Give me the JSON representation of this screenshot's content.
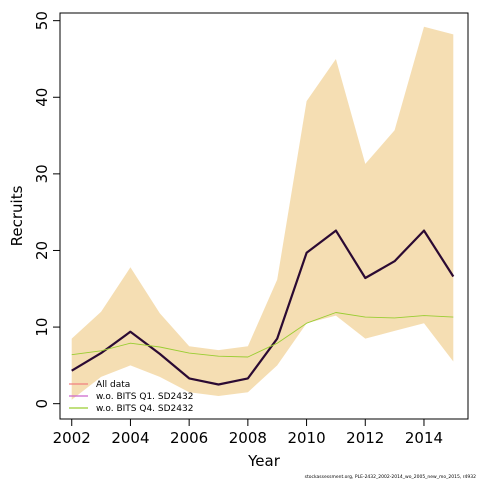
{
  "chart_data": {
    "type": "line",
    "x": [
      2002,
      2003,
      2004,
      2005,
      2006,
      2007,
      2008,
      2009,
      2010,
      2011,
      2012,
      2013,
      2014,
      2015
    ],
    "xlabel": "Year",
    "ylabel": "Recruits",
    "xlim": [
      2001.6,
      2015.5
    ],
    "ylim": [
      -2,
      51
    ],
    "xticks": [
      "2002",
      "2004",
      "2006",
      "2008",
      "2010",
      "2012",
      "2014"
    ],
    "yticks": [
      "0",
      "10",
      "20",
      "30",
      "40",
      "50"
    ],
    "band": {
      "lower": [
        0.5,
        3.5,
        5.0,
        3.5,
        1.5,
        1.0,
        1.5,
        5.0,
        10.5,
        11.5,
        8.5,
        9.5,
        10.5,
        5.5
      ],
      "upper": [
        8.5,
        12.0,
        17.8,
        11.8,
        7.5,
        7.0,
        7.5,
        16.2,
        39.5,
        45.0,
        31.3,
        35.7,
        49.2,
        48.2
      ],
      "color": "#f5deb3"
    },
    "series": [
      {
        "name": "All data",
        "values": [
          4.3,
          6.6,
          9.4,
          6.5,
          3.3,
          2.5,
          3.3,
          8.5,
          19.7,
          22.6,
          16.4,
          18.6,
          22.6,
          16.6
        ],
        "color": "#f08080"
      },
      {
        "name": "w.o. BITS Q1. SD2432",
        "values": [
          4.3,
          6.6,
          9.4,
          6.5,
          3.3,
          2.5,
          3.3,
          8.5,
          19.7,
          22.6,
          16.4,
          18.6,
          22.6,
          16.6
        ],
        "color": "#2b0a33"
      },
      {
        "name": "w.o. BITS Q4. SD2432",
        "values": [
          6.4,
          6.9,
          7.9,
          7.4,
          6.6,
          6.2,
          6.1,
          7.9,
          10.5,
          11.9,
          11.3,
          11.2,
          11.5,
          11.3
        ],
        "color": "#9acd32"
      }
    ],
    "legend": {
      "position": "bottom-left",
      "entries": [
        {
          "label": "All data",
          "color": "#f08080"
        },
        {
          "label": "w.o. BITS Q1. SD2432",
          "color": "#cc66cc"
        },
        {
          "label": "w.o. BITS Q4. SD2432",
          "color": "#9acd32"
        }
      ]
    },
    "footer": "stockassessment.org, PLE-2432_2002-2014_wo_2005_new_mo_2015, r4932",
    "grid": false
  }
}
